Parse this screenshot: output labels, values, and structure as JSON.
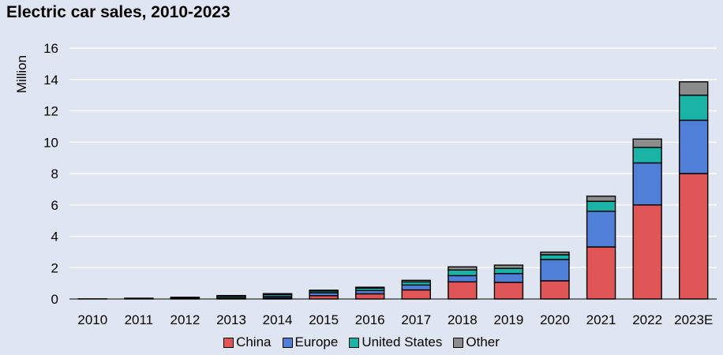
{
  "chart_data": {
    "type": "bar",
    "stacked": true,
    "title": "Electric car sales, 2010-2023",
    "xlabel": "",
    "ylabel": "Million",
    "ylim": [
      0,
      16
    ],
    "yticks": [
      0,
      2,
      4,
      6,
      8,
      10,
      12,
      14,
      16
    ],
    "grid": true,
    "legend_position": "bottom",
    "categories": [
      "2010",
      "2011",
      "2012",
      "2013",
      "2014",
      "2015",
      "2016",
      "2017",
      "2018",
      "2019",
      "2020",
      "2021",
      "2022",
      "2023E"
    ],
    "series": [
      {
        "name": "China",
        "color": "#e05555",
        "values": [
          0.01,
          0.01,
          0.02,
          0.02,
          0.07,
          0.21,
          0.33,
          0.58,
          1.09,
          1.06,
          1.16,
          3.32,
          6.0,
          8.0
        ]
      },
      {
        "name": "Europe",
        "color": "#4f7fd6",
        "values": [
          0.0,
          0.01,
          0.02,
          0.07,
          0.1,
          0.19,
          0.21,
          0.31,
          0.4,
          0.56,
          1.36,
          2.28,
          2.68,
          3.4
        ]
      },
      {
        "name": "United States",
        "color": "#1ab3a6",
        "values": [
          0.0,
          0.02,
          0.05,
          0.1,
          0.12,
          0.11,
          0.16,
          0.2,
          0.36,
          0.33,
          0.3,
          0.63,
          0.99,
          1.6
        ]
      },
      {
        "name": "Other",
        "color": "#8c8c8c",
        "values": [
          0.0,
          0.01,
          0.02,
          0.03,
          0.05,
          0.05,
          0.05,
          0.1,
          0.2,
          0.21,
          0.17,
          0.33,
          0.53,
          0.85
        ]
      }
    ]
  }
}
